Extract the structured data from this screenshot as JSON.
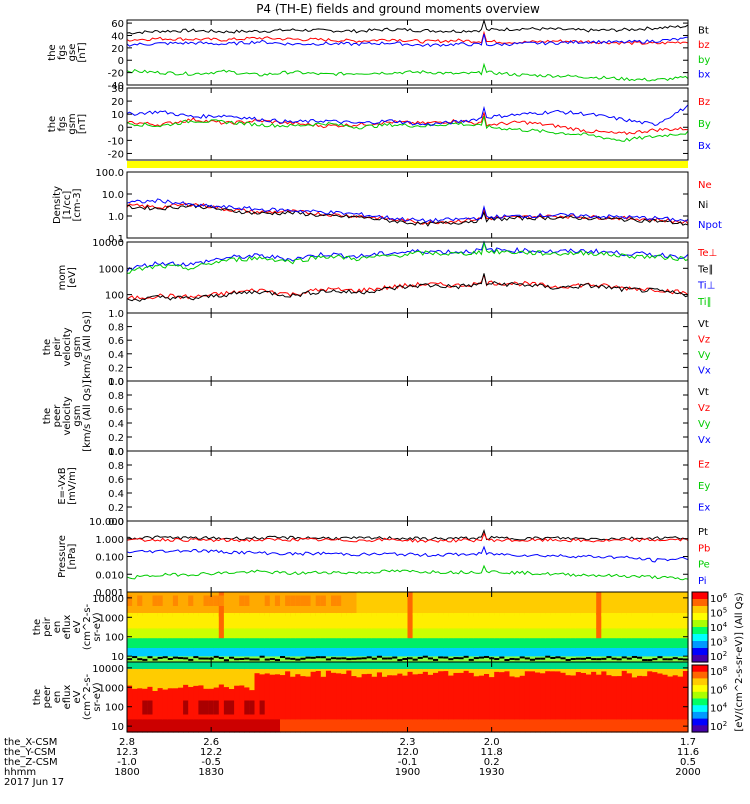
{
  "chart_data": {
    "title": "P4 (TH-E) fields and ground moments overview",
    "date": "2017 Jun 17",
    "time_axis": {
      "row_labels": [
        "the_X-CSM",
        "the_Y-CSM",
        "the_Z-CSM",
        "hhmm"
      ],
      "columns": [
        {
          "x": "2.8",
          "y": "12.3",
          "z": "-1.0",
          "hhmm": "1800",
          "t": 1800
        },
        {
          "x": "2.6",
          "y": "12.2",
          "z": "-0.5",
          "hhmm": "1830",
          "t": 1830
        },
        {
          "x": "2.3",
          "y": "12.0",
          "z": "-0.1",
          "hhmm": "1900",
          "t": 1900
        },
        {
          "x": "2.0",
          "y": "11.8",
          "z": "0.2",
          "hhmm": "1930",
          "t": 1930
        },
        {
          "x": "1.7",
          "y": "11.6",
          "z": "0.5",
          "hhmm": "2000",
          "t": 2000
        }
      ]
    },
    "panels": [
      {
        "id": "fgs_gse",
        "type": "line",
        "ylabel": [
          "the",
          "fgs",
          "gse",
          "[nT]"
        ],
        "ylim": [
          -40,
          65
        ],
        "yticks": [
          "60",
          "40",
          "20",
          "0",
          "-20",
          "-40"
        ],
        "ytick_values": [
          60,
          40,
          20,
          0,
          -20,
          -40
        ],
        "series": [
          {
            "name": "Bt",
            "color": "#000000",
            "values": [
              44,
              47,
              48,
              46,
              47,
              49,
              48,
              47,
              50,
              48,
              47,
              49,
              51,
              50,
              48,
              49,
              52,
              55
            ]
          },
          {
            "name": "bz",
            "color": "#ff0000",
            "values": [
              33,
              35,
              34,
              33,
              36,
              34,
              33,
              31,
              34,
              30,
              32,
              30,
              29,
              31,
              30,
              28,
              27,
              30
            ]
          },
          {
            "name": "by",
            "color": "#00cc00",
            "values": [
              -17,
              -20,
              -22,
              -18,
              -24,
              -19,
              -23,
              -21,
              -20,
              -19,
              -22,
              -20,
              -24,
              -25,
              -27,
              -30,
              -32,
              -28
            ]
          },
          {
            "name": "bx",
            "color": "#0000ff",
            "values": [
              25,
              27,
              28,
              26,
              30,
              26,
              27,
              26,
              28,
              24,
              26,
              25,
              27,
              28,
              30,
              29,
              31,
              35
            ]
          }
        ]
      },
      {
        "id": "fgs_gsm",
        "type": "line",
        "ylabel": [
          "the",
          "fgs",
          "gsm",
          "[nT]"
        ],
        "ylim": [
          -25,
          30
        ],
        "yticks": [
          "30",
          "20",
          "10",
          "0",
          "-10",
          "-20"
        ],
        "ytick_values": [
          30,
          20,
          10,
          0,
          -10,
          -20
        ],
        "series": [
          {
            "name": "Bz",
            "color": "#ff0000",
            "values": [
              4,
              2,
              6,
              3,
              5,
              3,
              1,
              2,
              4,
              3,
              5,
              2,
              4,
              1,
              -3,
              -5,
              -2,
              -1
            ]
          },
          {
            "name": "By",
            "color": "#00cc00",
            "values": [
              3,
              1,
              5,
              4,
              2,
              1,
              3,
              0,
              2,
              1,
              3,
              0,
              -2,
              -4,
              -6,
              -10,
              -7,
              -4
            ]
          },
          {
            "name": "Bx",
            "color": "#0000ff",
            "values": [
              10,
              12,
              8,
              9,
              6,
              4,
              5,
              3,
              5,
              2,
              4,
              8,
              10,
              12,
              10,
              6,
              2,
              16
            ]
          }
        ]
      },
      {
        "id": "density",
        "type": "line",
        "scale": "log",
        "ylabel": [
          "Density",
          "[1/cc]",
          "[cm-3]"
        ],
        "ylim": [
          0.1,
          100
        ],
        "yticks": [
          "100.0",
          "10.0",
          "1.0",
          "0.1"
        ],
        "ytick_values": [
          100,
          10,
          1,
          0.1
        ],
        "series": [
          {
            "name": "Ne",
            "color": "#ff0000",
            "values": [
              3,
              2.5,
              3.5,
              2,
              1.5,
              1.6,
              1.2,
              1,
              0.7,
              0.5,
              0.6,
              0.8,
              0.9,
              1,
              0.9,
              0.8,
              0.7,
              0.5
            ]
          },
          {
            "name": "Ni",
            "color": "#000000",
            "values": [
              2.6,
              2.2,
              3,
              1.8,
              1.3,
              1.4,
              1,
              0.9,
              0.6,
              0.42,
              0.5,
              0.7,
              0.8,
              0.85,
              0.8,
              0.7,
              0.6,
              0.42
            ]
          },
          {
            "name": "Npot",
            "color": "#0000ff",
            "values": [
              4,
              5,
              3,
              2.5,
              2,
              1.8,
              1.5,
              1.2,
              0.8,
              0.6,
              0.7,
              0.9,
              1,
              1.1,
              1,
              0.9,
              0.8,
              0.6
            ]
          }
        ]
      },
      {
        "id": "temperature",
        "type": "line",
        "scale": "log",
        "ylabel": [
          "mom",
          "[eV]"
        ],
        "ylim": [
          20,
          10000
        ],
        "yticks": [
          "10000",
          "1000",
          "100"
        ],
        "ytick_values": [
          10000,
          1000,
          100
        ],
        "series": [
          {
            "name": "Te⊥",
            "color": "#ff0000",
            "values": [
              70,
              90,
              80,
              110,
              150,
              100,
              160,
              140,
              190,
              250,
              220,
              280,
              260,
              200,
              240,
              180,
              160,
              110
            ]
          },
          {
            "name": "Te∥",
            "color": "#000000",
            "values": [
              60,
              80,
              70,
              100,
              130,
              90,
              140,
              120,
              170,
              230,
              200,
              260,
              240,
              180,
              220,
              160,
              140,
              95
            ]
          },
          {
            "name": "Ti⊥",
            "color": "#0000ff",
            "values": [
              900,
              1600,
              1400,
              2500,
              3000,
              2200,
              3500,
              2800,
              3800,
              4500,
              4200,
              5000,
              4800,
              4300,
              4600,
              3700,
              3300,
              2800
            ]
          },
          {
            "name": "Ti∥",
            "color": "#00cc00",
            "values": [
              700,
              1200,
              1000,
              2000,
              2500,
              1800,
              2900,
              2300,
              3000,
              3800,
              3500,
              4300,
              4000,
              3600,
              3900,
              3000,
              2700,
              2300
            ]
          }
        ]
      },
      {
        "id": "peir_velocity",
        "type": "line",
        "ylabel": [
          "the",
          "peir",
          "velocity",
          "gsm",
          "[km/s (All Qs)]"
        ],
        "ylim": [
          0,
          1
        ],
        "yticks": [
          "1.0",
          "0.8",
          "0.6",
          "0.4",
          "0.2",
          "0.0"
        ],
        "ytick_values": [
          1,
          0.8,
          0.6,
          0.4,
          0.2,
          0
        ],
        "series": [
          {
            "name": "Vt",
            "color": "#000000",
            "values": []
          },
          {
            "name": "Vz",
            "color": "#ff0000",
            "values": []
          },
          {
            "name": "Vy",
            "color": "#00cc00",
            "values": []
          },
          {
            "name": "Vx",
            "color": "#0000ff",
            "values": []
          }
        ]
      },
      {
        "id": "peer_velocity",
        "type": "line",
        "ylabel": [
          "the",
          "peer",
          "velocity",
          "gsm",
          "[km/s (All Qs)]"
        ],
        "ylim": [
          0,
          1
        ],
        "yticks": [
          "1.0",
          "0.8",
          "0.6",
          "0.4",
          "0.2",
          "0.0"
        ],
        "ytick_values": [
          1,
          0.8,
          0.6,
          0.4,
          0.2,
          0
        ],
        "series": [
          {
            "name": "Vt",
            "color": "#000000",
            "values": []
          },
          {
            "name": "Vz",
            "color": "#ff0000",
            "values": []
          },
          {
            "name": "Vy",
            "color": "#00cc00",
            "values": []
          },
          {
            "name": "Vx",
            "color": "#0000ff",
            "values": []
          }
        ]
      },
      {
        "id": "efield",
        "type": "line",
        "ylabel": [
          "E=-VxB",
          "[mV/m]"
        ],
        "ylim": [
          0,
          1
        ],
        "yticks": [
          "1.0",
          "0.8",
          "0.6",
          "0.4",
          "0.2",
          "0.0"
        ],
        "ytick_values": [
          1,
          0.8,
          0.6,
          0.4,
          0.2,
          0
        ],
        "series": [
          {
            "name": "Ez",
            "color": "#ff0000",
            "values": []
          },
          {
            "name": "Ey",
            "color": "#00cc00",
            "values": []
          },
          {
            "name": "Ex",
            "color": "#0000ff",
            "values": []
          }
        ]
      },
      {
        "id": "pressure",
        "type": "line",
        "scale": "log",
        "ylabel": [
          "Pressure",
          "[nPa]"
        ],
        "ylim": [
          0.001,
          10
        ],
        "yticks": [
          "10.000",
          "1.000",
          "0.100",
          "0.010",
          "0.001"
        ],
        "ytick_values": [
          10,
          1,
          0.1,
          0.01,
          0.001
        ],
        "series": [
          {
            "name": "Pt",
            "color": "#000000",
            "values": [
              1.1,
              1.2,
              1.1,
              1.05,
              1.1,
              1.15,
              1.1,
              1.05,
              1.1,
              1.0,
              1.05,
              1.1,
              1.05,
              1.1,
              1.0,
              1.05,
              1.1,
              1.15
            ]
          },
          {
            "name": "Pb",
            "color": "#ff0000",
            "values": [
              0.8,
              0.9,
              0.85,
              0.8,
              0.85,
              0.9,
              0.85,
              0.8,
              0.9,
              0.75,
              0.8,
              0.85,
              0.8,
              0.85,
              0.75,
              0.8,
              0.85,
              0.9
            ]
          },
          {
            "name": "Pe",
            "color": "#00cc00",
            "values": [
              0.006,
              0.009,
              0.01,
              0.012,
              0.014,
              0.011,
              0.013,
              0.012,
              0.015,
              0.014,
              0.013,
              0.014,
              0.012,
              0.01,
              0.009,
              0.008,
              0.007,
              0.005
            ]
          },
          {
            "name": "Pi",
            "color": "#0000ff",
            "values": [
              0.18,
              0.2,
              0.22,
              0.18,
              0.16,
              0.14,
              0.15,
              0.13,
              0.14,
              0.12,
              0.13,
              0.14,
              0.12,
              0.11,
              0.1,
              0.09,
              0.06,
              0.08
            ]
          }
        ]
      },
      {
        "id": "peir_spectrogram",
        "type": "heatmap",
        "scale": "log",
        "ylabel": [
          "the",
          "peir",
          "en",
          "eflux",
          "eV",
          "(cm^2-s-",
          "sr-eV)"
        ],
        "ylim": [
          5,
          20000
        ],
        "yticks": [
          "10000",
          "1000",
          "100",
          "10"
        ],
        "ytick_values": [
          10000,
          1000,
          100,
          10
        ]
      },
      {
        "id": "peer_spectrogram",
        "type": "heatmap",
        "scale": "log",
        "ylabel": [
          "the",
          "peer",
          "en",
          "eflux",
          "eV",
          "(cm^2-s-",
          "sr-eV)"
        ],
        "ylim": [
          5,
          20000
        ],
        "yticks": [
          "10000",
          "1000",
          "100",
          "10"
        ],
        "ytick_values": [
          10000,
          1000,
          100,
          10
        ]
      }
    ],
    "colorbar": {
      "label": "[eV/(cm^2-s-sr-eV)] (All Qs)",
      "scale": "log",
      "upper_ticks": [
        "10^6",
        "10^5",
        "10^4",
        "10^3",
        "10^2"
      ],
      "lower_ticks": [
        "10^8",
        "10^6",
        "10^4",
        "10^2"
      ]
    }
  }
}
